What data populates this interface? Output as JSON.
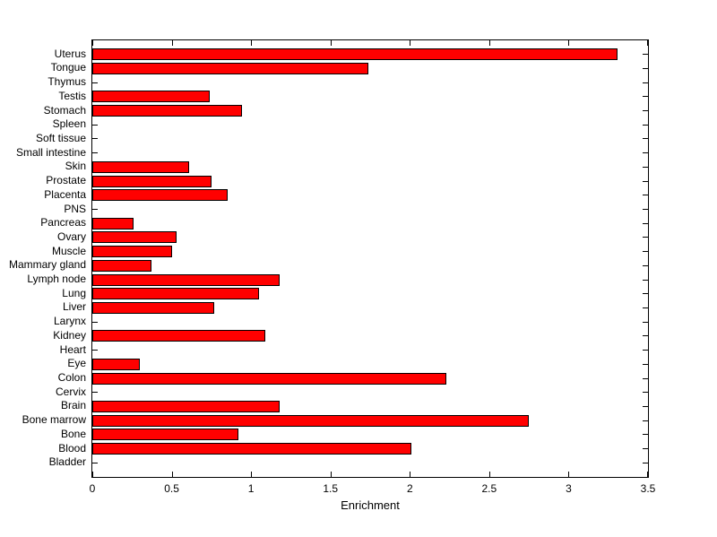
{
  "chart_data": {
    "type": "bar",
    "orientation": "horizontal",
    "title": "",
    "xlabel": "Enrichment",
    "ylabel": "",
    "xlim": [
      0,
      3.5
    ],
    "xtick_values": [
      0,
      0.5,
      1,
      1.5,
      2,
      2.5,
      3,
      3.5
    ],
    "xtick_labels": [
      "0",
      "0.5",
      "1",
      "1.5",
      "2",
      "2.5",
      "3",
      "3.5"
    ],
    "grid": false,
    "legend": "none",
    "bar_color": "#ff0000",
    "bar_edge_color": "#000000",
    "background_color": "#ffffff",
    "categories": [
      "Uterus",
      "Tongue",
      "Thymus",
      "Testis",
      "Stomach",
      "Spleen",
      "Soft tissue",
      "Small intestine",
      "Skin",
      "Prostate",
      "Placenta",
      "PNS",
      "Pancreas",
      "Ovary",
      "Muscle",
      "Mammary gland",
      "Lymph node",
      "Lung",
      "Liver",
      "Larynx",
      "Kidney",
      "Heart",
      "Eye",
      "Colon",
      "Cervix",
      "Brain",
      "Bone marrow",
      "Bone",
      "Blood",
      "Bladder"
    ],
    "values": [
      3.31,
      1.74,
      0,
      0.74,
      0.94,
      0,
      0,
      0,
      0.61,
      0.75,
      0.85,
      0,
      0.26,
      0.53,
      0.5,
      0.37,
      1.18,
      1.05,
      0.77,
      0,
      1.09,
      0,
      0.3,
      2.23,
      0,
      1.18,
      2.75,
      0.92,
      2.01,
      0
    ]
  }
}
